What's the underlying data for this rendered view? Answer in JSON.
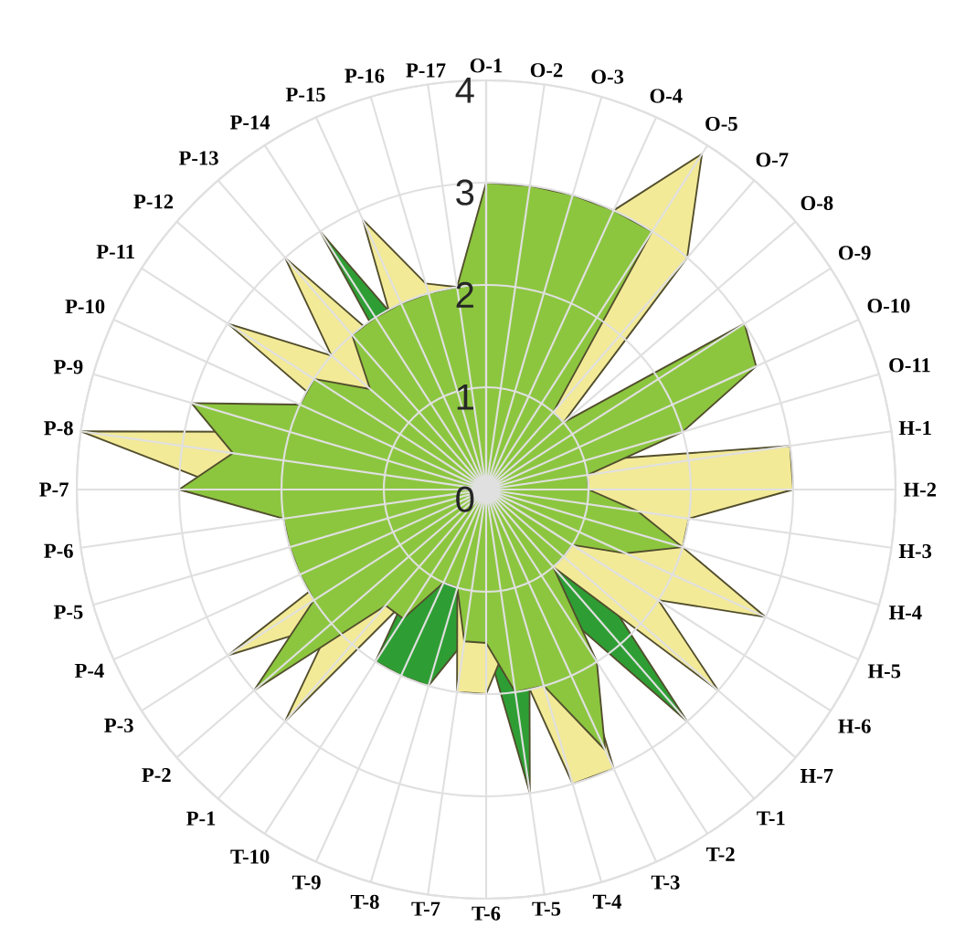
{
  "chart_data": {
    "type": "radar",
    "categories": [
      "O-1",
      "O-2",
      "O-3",
      "O-4",
      "O-5",
      "O-7",
      "O-8",
      "O-9",
      "O-10",
      "O-11",
      "H-1",
      "H-2",
      "H-3",
      "H-4",
      "H-5",
      "H-6",
      "H-7",
      "T-1",
      "T-2",
      "T-3",
      "T-4",
      "T-5",
      "T-6",
      "T-7",
      "T-8",
      "T-9",
      "T-10",
      "P-1",
      "P-2",
      "P-3",
      "P-4",
      "P-5",
      "P-6",
      "P-7",
      "P-8",
      "P-9",
      "P-10",
      "P-11",
      "P-12",
      "P-13",
      "P-14",
      "P-15",
      "P-16",
      "P-17"
    ],
    "series": [
      {
        "color": "#2e9e34",
        "values": [
          2.0,
          2.0,
          2.0,
          2.0,
          2.0,
          1.0,
          1.0,
          1.0,
          1.0,
          1.0,
          1.0,
          1.0,
          1.0,
          1.0,
          1.0,
          1.5,
          1.5,
          3.0,
          1.5,
          1.5,
          1.5,
          3.0,
          1.5,
          1.5,
          2.0,
          2.0,
          2.0,
          1.0,
          1.0,
          1.0,
          1.0,
          1.0,
          1.0,
          1.0,
          1.0,
          1.0,
          1.0,
          1.0,
          1.0,
          1.0,
          3.0,
          1.5,
          1.5,
          1.5
        ]
      },
      {
        "color": "#f3ea98",
        "values": [
          2.5,
          2.5,
          2.5,
          3.0,
          3.9,
          3.0,
          1.0,
          1.0,
          1.0,
          1.0,
          3.0,
          3.0,
          2.0,
          2.0,
          3.0,
          2.0,
          3.0,
          1.0,
          1.5,
          3.0,
          3.0,
          1.5,
          2.0,
          2.0,
          1.0,
          1.0,
          1.0,
          3.0,
          2.0,
          3.0,
          1.2,
          1.5,
          1.5,
          2.5,
          4.0,
          2.0,
          1.5,
          3.0,
          2.0,
          3.0,
          1.5,
          2.9,
          2.1,
          2.0
        ]
      },
      {
        "color": "#8cc63f",
        "values": [
          3.0,
          3.0,
          3.0,
          3.0,
          3.0,
          1.0,
          1.0,
          3.0,
          2.9,
          2.0,
          1.0,
          1.0,
          1.5,
          2.0,
          1.5,
          1.0,
          1.0,
          1.0,
          2.0,
          2.8,
          2.0,
          2.0,
          1.5,
          1.5,
          1.0,
          1.0,
          1.5,
          1.5,
          3.0,
          2.0,
          2.0,
          2.0,
          2.0,
          3.0,
          2.5,
          3.0,
          2.0,
          2.0,
          1.5,
          2.0,
          2.0,
          2.0,
          2.0,
          2.0
        ]
      }
    ],
    "ylim": [
      0,
      4
    ],
    "yticks": [
      0,
      1,
      2,
      3,
      4
    ],
    "grid": true
  }
}
